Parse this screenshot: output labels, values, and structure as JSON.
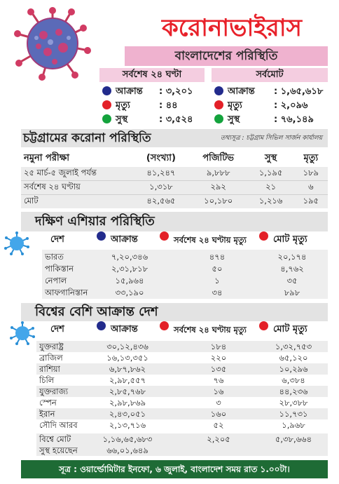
{
  "header": {
    "title": "করোনাভাইরাস",
    "subtitle": "বাংলাদেশের পরিস্থিতি"
  },
  "bd_stats": {
    "last24": {
      "heading": "সর্বশেষ ২৪ ঘণ্টা",
      "items": [
        {
          "label": "আক্রান্ত",
          "value": ": ৩,২০১",
          "color": "#222b8c"
        },
        {
          "label": "মৃত্যু",
          "value": ": ৪৪",
          "color": "#e32028"
        },
        {
          "label": "সুস্থ",
          "value": ": ৩,৫২৪",
          "color": "#14a33d"
        }
      ]
    },
    "total": {
      "heading": "সর্বমোট",
      "items": [
        {
          "label": "আক্রান্ত",
          "value": ": ১,৬৫,৬১৮",
          "color": "#222b8c"
        },
        {
          "label": "মৃত্যু",
          "value": ": ২,০৯৬",
          "color": "#e32028"
        },
        {
          "label": "সুস্থ",
          "value": ": ৭৬,১৪৯",
          "color": "#14a33d"
        }
      ]
    }
  },
  "chattogram": {
    "title": "চট্টগ্রামের করোনা পরিস্থিতি",
    "source": "তথ্যসূত্র : চট্টগ্রাম সিভিল সার্জন কার্যালয়",
    "headers": [
      "নমুনা পরীক্ষা",
      "(সংখ্যা)",
      "পজিটিভ",
      "সুস্থ",
      "মৃত্যু"
    ],
    "rows": [
      [
        "২৫ মার্চ-৫ জুলাই পর্যন্ত",
        "৪১,২৪৭",
        "৯,৮৮৮",
        "১,১৯৫",
        "১৮৯"
      ],
      [
        "সর্বশেষ ২৪ ঘণ্টায়",
        "১,৩১৮",
        "২৯২",
        "২১",
        "৬"
      ]
    ],
    "total": [
      "মোট",
      "৪২,৫৬৫",
      "১০,১৮০",
      "১,২১৬",
      "১৯৫"
    ]
  },
  "south_asia": {
    "title": "দক্ষিণ এশিয়ার পরিস্থিতি",
    "col_country": "দেশ",
    "col_infected": "আক্রান্ত",
    "col_deaths24": "সর্বশেষ ২৪ ঘণ্টায় মৃত্যু",
    "col_total_deaths": "মোট মৃত্যু",
    "rows": [
      {
        "country": "ভারত",
        "infected": "৭,২০,৩৪৬",
        "deaths24": "৪৭৪",
        "total_deaths": "২০,১৭৪"
      },
      {
        "country": "পাকিস্তান",
        "infected": "২,৩১,৮১৮",
        "deaths24": "৫০",
        "total_deaths": "৪,৭৬২"
      },
      {
        "country": "নেপাল",
        "infected": "১৫,৯৬৪",
        "deaths24": "১",
        "total_deaths": "৩৫"
      },
      {
        "country": "আফগানিস্তান",
        "infected": "৩৩,১৯০",
        "deaths24": "৩৪",
        "total_deaths": "৮৯৮"
      }
    ]
  },
  "world": {
    "title": "বিশ্বের বেশি আক্রান্ত দেশ",
    "col_country": "দেশ",
    "col_infected": "আক্রান্ত",
    "col_deaths24": "সর্বশেষ ২৪ ঘণ্টায় মৃত্যু",
    "col_total_deaths": "মোট মৃত্যু",
    "rows": [
      {
        "country": "যুক্তরাষ্ট্র",
        "infected": "৩০,১২,৪৩৬",
        "deaths24": "১৮৪",
        "total_deaths": "১,৩২,৭৫৩"
      },
      {
        "country": "ব্রাজিল",
        "infected": "১৬,১৩,৩৫১",
        "deaths24": "২২০",
        "total_deaths": "৬৫,১২০"
      },
      {
        "country": "রাশিয়া",
        "infected": "৬,৮৭,৮৬২",
        "deaths24": "১৩৫",
        "total_deaths": "১০,২৯৬"
      },
      {
        "country": "চিলি",
        "infected": "২,৯৮,৫৫৭",
        "deaths24": "৭৬",
        "total_deaths": "৬,৩৮৪"
      },
      {
        "country": "যুক্তরাজ্য",
        "infected": "২,৮৫,৭৬৮",
        "deaths24": "১৬",
        "total_deaths": "৪৪,২৩৬"
      },
      {
        "country": "স্পেন",
        "infected": "২,৯৮,৮৬৯",
        "deaths24": "৩",
        "total_deaths": "২৮,৩৮৮"
      },
      {
        "country": "ইরান",
        "infected": "২,৪৩,০৫১",
        "deaths24": "১৬০",
        "total_deaths": "১১,৭৩১"
      },
      {
        "country": "সৌদি আরব",
        "infected": "২,১৩,৭১৬",
        "deaths24": "৫২",
        "total_deaths": "১,৯৬৮"
      },
      {
        "country": "বিশ্বে মোট",
        "infected": "১,১৬,৬৫,৬৮৩",
        "deaths24": "২,২০৫",
        "total_deaths": "৫,৩৮,৬৬৪"
      },
      {
        "country": "সুস্থ হয়েছেন",
        "infected": "৬৬,০১,৬৪৯",
        "deaths24": "",
        "total_deaths": ""
      }
    ]
  },
  "footer": {
    "text": "সূত্র : ওয়ার্ল্ডোমিটার ইনফো, ৬ জুলাই, বাংলাদেশ সময় রাত ১.০০টা।"
  }
}
